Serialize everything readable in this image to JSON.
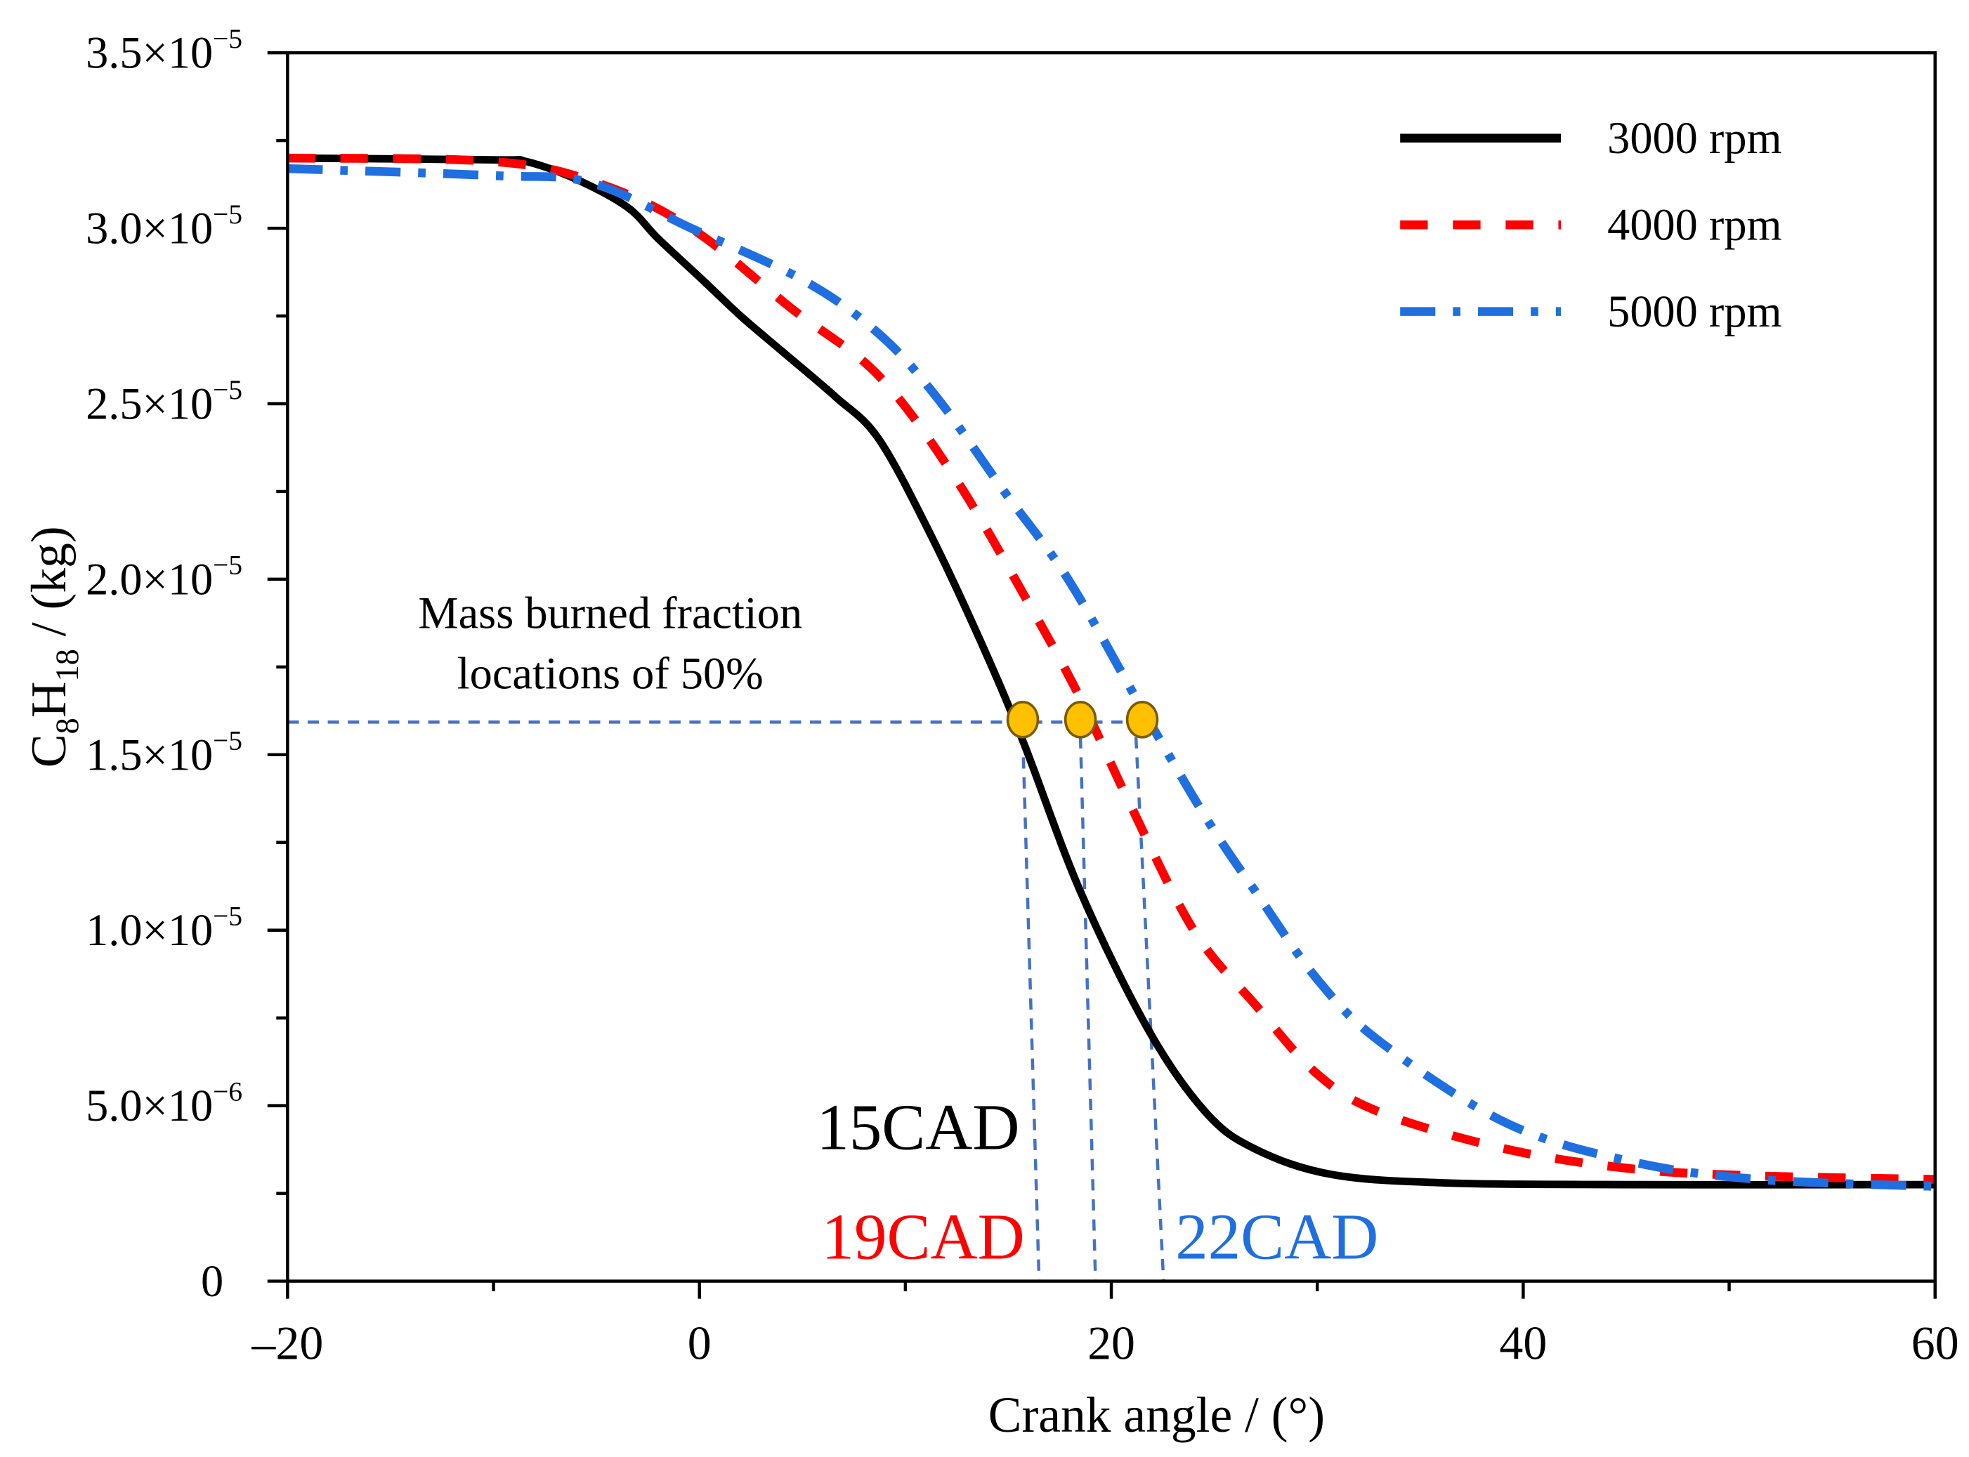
{
  "chart_data": {
    "type": "line",
    "title": "",
    "xlabel": "Crank angle / (°)",
    "ylabel": {
      "base": "C",
      "sub1": "8",
      "mid": "H",
      "sub2": "18",
      "tail": " / (kg)"
    },
    "xlim": [
      -20,
      60
    ],
    "ylim": [
      0,
      3.5e-05
    ],
    "y_scale": 1e-05,
    "grid": false,
    "legend_position": "top-right",
    "x_ticks": [
      -20,
      0,
      20,
      40,
      60
    ],
    "x_tick_labels": [
      "–20",
      "0",
      "20",
      "40",
      "60"
    ],
    "y_ticks": [
      {
        "value": 0,
        "mant": "0",
        "exp": ""
      },
      {
        "value": 0.5,
        "mant": "5.0×10",
        "exp": "−6"
      },
      {
        "value": 1.0,
        "mant": "1.0×10",
        "exp": "−5"
      },
      {
        "value": 1.5,
        "mant": "1.5×10",
        "exp": "−5"
      },
      {
        "value": 2.0,
        "mant": "2.0×10",
        "exp": "−5"
      },
      {
        "value": 2.5,
        "mant": "2.5×10",
        "exp": "−5"
      },
      {
        "value": 3.0,
        "mant": "3.0×10",
        "exp": "−5"
      },
      {
        "value": 3.5,
        "mant": "3.5×10",
        "exp": "−5"
      }
    ],
    "series": [
      {
        "name": "3000 rpm",
        "color": "#000000",
        "dash": "solid",
        "x": [
          -20,
          -10,
          -8.4,
          -6,
          -3.5,
          -2,
          0.2,
          2,
          4,
          6.6,
          8.7,
          11.2,
          13.6,
          15.7,
          18.5,
          21.8,
          24.6,
          27,
          30.7,
          36.2,
          45,
          60
        ],
        "y": [
          3.2,
          3.195,
          3.19,
          3.14,
          3.06,
          2.97,
          2.85,
          2.75,
          2.65,
          2.52,
          2.4,
          2.13,
          1.83,
          1.54,
          1.11,
          0.716,
          0.48,
          0.376,
          0.304,
          0.28,
          0.275,
          0.275
        ]
      },
      {
        "name": "4000 rpm",
        "color": "#ff0000",
        "dash": "dash",
        "x": [
          -20,
          -10,
          -5,
          -0.4,
          4.5,
          8.7,
          12.4,
          16,
          18.5,
          20.9,
          24,
          27,
          30,
          33.1,
          39.2,
          45.3,
          51.4,
          60
        ],
        "y": [
          3.2,
          3.19,
          3.13,
          3.0,
          2.77,
          2.58,
          2.29,
          1.93,
          1.66,
          1.36,
          1.0,
          0.787,
          0.59,
          0.48,
          0.376,
          0.32,
          0.3,
          0.29
        ]
      },
      {
        "name": "5000 rpm",
        "color": "#1f6fe0",
        "dash": "dashdot",
        "x": [
          -20,
          -10,
          -5.3,
          -0.4,
          5.1,
          8.7,
          11.5,
          14.8,
          17.9,
          21.5,
          24.6,
          27,
          30,
          33.1,
          39.2,
          45.3,
          51.4,
          60
        ],
        "y": [
          3.17,
          3.15,
          3.13,
          3.0,
          2.85,
          2.7,
          2.52,
          2.25,
          2.0,
          1.63,
          1.32,
          1.11,
          0.86,
          0.68,
          0.45,
          0.34,
          0.29,
          0.27
        ]
      }
    ],
    "mbf50_level": 1.6,
    "markers": [
      {
        "x": 15.7,
        "y": 1.6,
        "label": "15CAD",
        "color": "#000000"
      },
      {
        "x": 18.5,
        "y": 1.6,
        "label": "19CAD",
        "color": "#ff0000"
      },
      {
        "x": 21.5,
        "y": 1.6,
        "label": "22CAD",
        "color": "#1f6fe0"
      }
    ],
    "marker_color": "#ffc000",
    "guide_color": "#4472c4",
    "annotation": [
      "Mass burned fraction",
      "locations of 50%"
    ]
  }
}
